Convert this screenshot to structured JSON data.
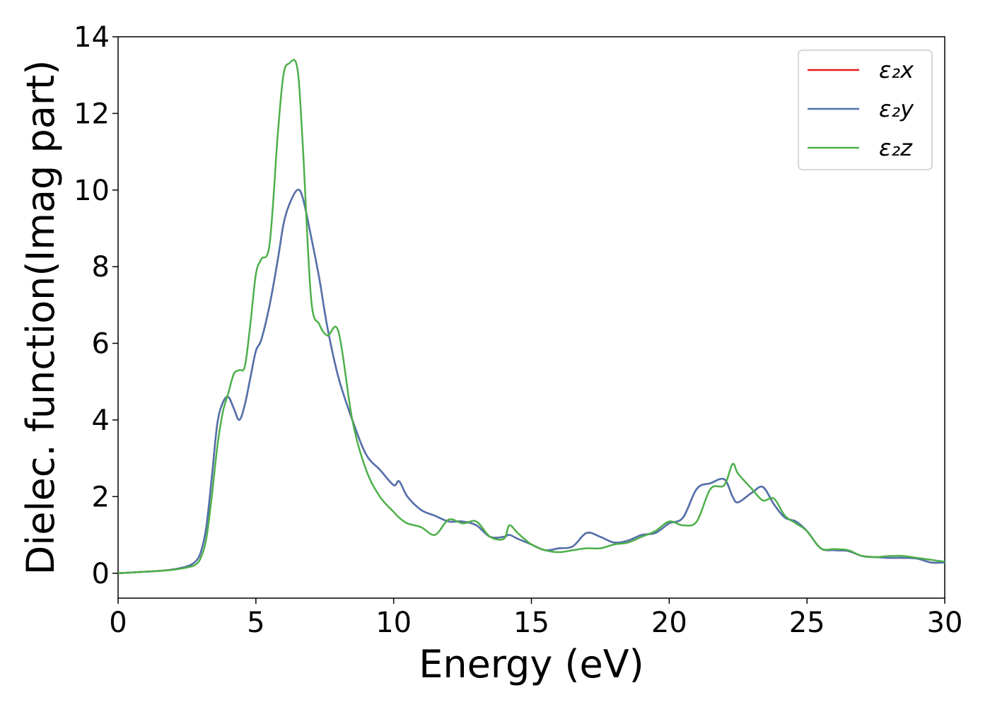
{
  "chart_data": {
    "type": "line",
    "xlabel": "Energy (eV)",
    "ylabel": "Dielec. function(Imag part)",
    "xlim": [
      0,
      30
    ],
    "ylim": [
      -0.65,
      14
    ],
    "xticks": [
      "0",
      "5",
      "10",
      "15",
      "20",
      "25",
      "30"
    ],
    "yticks": [
      "0",
      "2",
      "4",
      "6",
      "8",
      "10",
      "12",
      "14"
    ],
    "grid": false,
    "legend_position": "top-right",
    "x": [
      0,
      0.5,
      1,
      1.5,
      2,
      2.5,
      2.8,
      3,
      3.2,
      3.4,
      3.6,
      3.8,
      4,
      4.2,
      4.4,
      4.6,
      4.8,
      5,
      5.2,
      5.5,
      5.8,
      6,
      6.2,
      6.5,
      6.7,
      7,
      7.3,
      7.6,
      8,
      8.5,
      9,
      9.5,
      10,
      10.2,
      10.5,
      11,
      11.5,
      12,
      12.5,
      13,
      13.5,
      14,
      14.2,
      14.5,
      15,
      15.5,
      16,
      16.5,
      17,
      17.5,
      18,
      18.5,
      19,
      19.5,
      20,
      20.5,
      21,
      21.5,
      22,
      22.3,
      22.5,
      23,
      23.4,
      23.8,
      24.2,
      24.6,
      25,
      25.5,
      26,
      26.5,
      27,
      27.5,
      28,
      28.5,
      29,
      29.5,
      30
    ],
    "series": [
      {
        "name": "ε₂x",
        "color": "#e41a1c",
        "values": [
          0,
          0.02,
          0.04,
          0.06,
          0.1,
          0.18,
          0.3,
          0.55,
          1.2,
          2.5,
          3.9,
          4.45,
          4.6,
          4.3,
          4.0,
          4.4,
          5.1,
          5.8,
          6.1,
          7.0,
          8.2,
          9.1,
          9.6,
          10.0,
          9.8,
          8.8,
          7.7,
          6.4,
          5.1,
          4.0,
          3.1,
          2.7,
          2.3,
          2.4,
          2.0,
          1.65,
          1.5,
          1.35,
          1.35,
          1.25,
          0.95,
          0.95,
          1.0,
          0.9,
          0.75,
          0.6,
          0.65,
          0.7,
          1.05,
          0.95,
          0.8,
          0.85,
          1.0,
          1.05,
          1.3,
          1.45,
          2.2,
          2.35,
          2.45,
          2.0,
          1.85,
          2.1,
          2.25,
          1.8,
          1.45,
          1.35,
          1.1,
          0.65,
          0.6,
          0.58,
          0.45,
          0.42,
          0.4,
          0.4,
          0.38,
          0.28,
          0.28
        ]
      },
      {
        "name": "ε₂y",
        "color": "#4d74b0",
        "values": [
          0,
          0.02,
          0.04,
          0.06,
          0.1,
          0.18,
          0.3,
          0.55,
          1.2,
          2.5,
          3.9,
          4.45,
          4.6,
          4.3,
          4.0,
          4.4,
          5.1,
          5.8,
          6.1,
          7.0,
          8.2,
          9.1,
          9.6,
          10.0,
          9.8,
          8.8,
          7.7,
          6.4,
          5.1,
          4.0,
          3.1,
          2.7,
          2.3,
          2.4,
          2.0,
          1.65,
          1.5,
          1.35,
          1.35,
          1.25,
          0.95,
          0.95,
          1.0,
          0.9,
          0.75,
          0.6,
          0.65,
          0.7,
          1.05,
          0.95,
          0.8,
          0.85,
          1.0,
          1.05,
          1.3,
          1.45,
          2.2,
          2.35,
          2.45,
          2.0,
          1.85,
          2.1,
          2.25,
          1.8,
          1.45,
          1.35,
          1.1,
          0.65,
          0.6,
          0.58,
          0.45,
          0.42,
          0.4,
          0.4,
          0.38,
          0.28,
          0.28
        ]
      },
      {
        "name": "ε₂z",
        "color": "#4daf4a",
        "values": [
          0,
          0.02,
          0.04,
          0.06,
          0.09,
          0.15,
          0.22,
          0.4,
          0.9,
          2.0,
          3.3,
          4.2,
          4.7,
          5.2,
          5.3,
          5.4,
          6.5,
          7.8,
          8.2,
          8.6,
          11.5,
          13.0,
          13.3,
          13.2,
          11.2,
          7.2,
          6.5,
          6.2,
          6.3,
          4.0,
          2.7,
          2.0,
          1.6,
          1.45,
          1.3,
          1.2,
          1.0,
          1.4,
          1.3,
          1.35,
          0.95,
          0.9,
          1.25,
          1.05,
          0.75,
          0.6,
          0.55,
          0.6,
          0.65,
          0.65,
          0.75,
          0.8,
          0.95,
          1.1,
          1.35,
          1.25,
          1.35,
          2.2,
          2.3,
          2.85,
          2.6,
          2.2,
          1.9,
          1.95,
          1.5,
          1.3,
          1.1,
          0.65,
          0.63,
          0.6,
          0.45,
          0.42,
          0.45,
          0.45,
          0.4,
          0.35,
          0.3
        ]
      }
    ]
  }
}
